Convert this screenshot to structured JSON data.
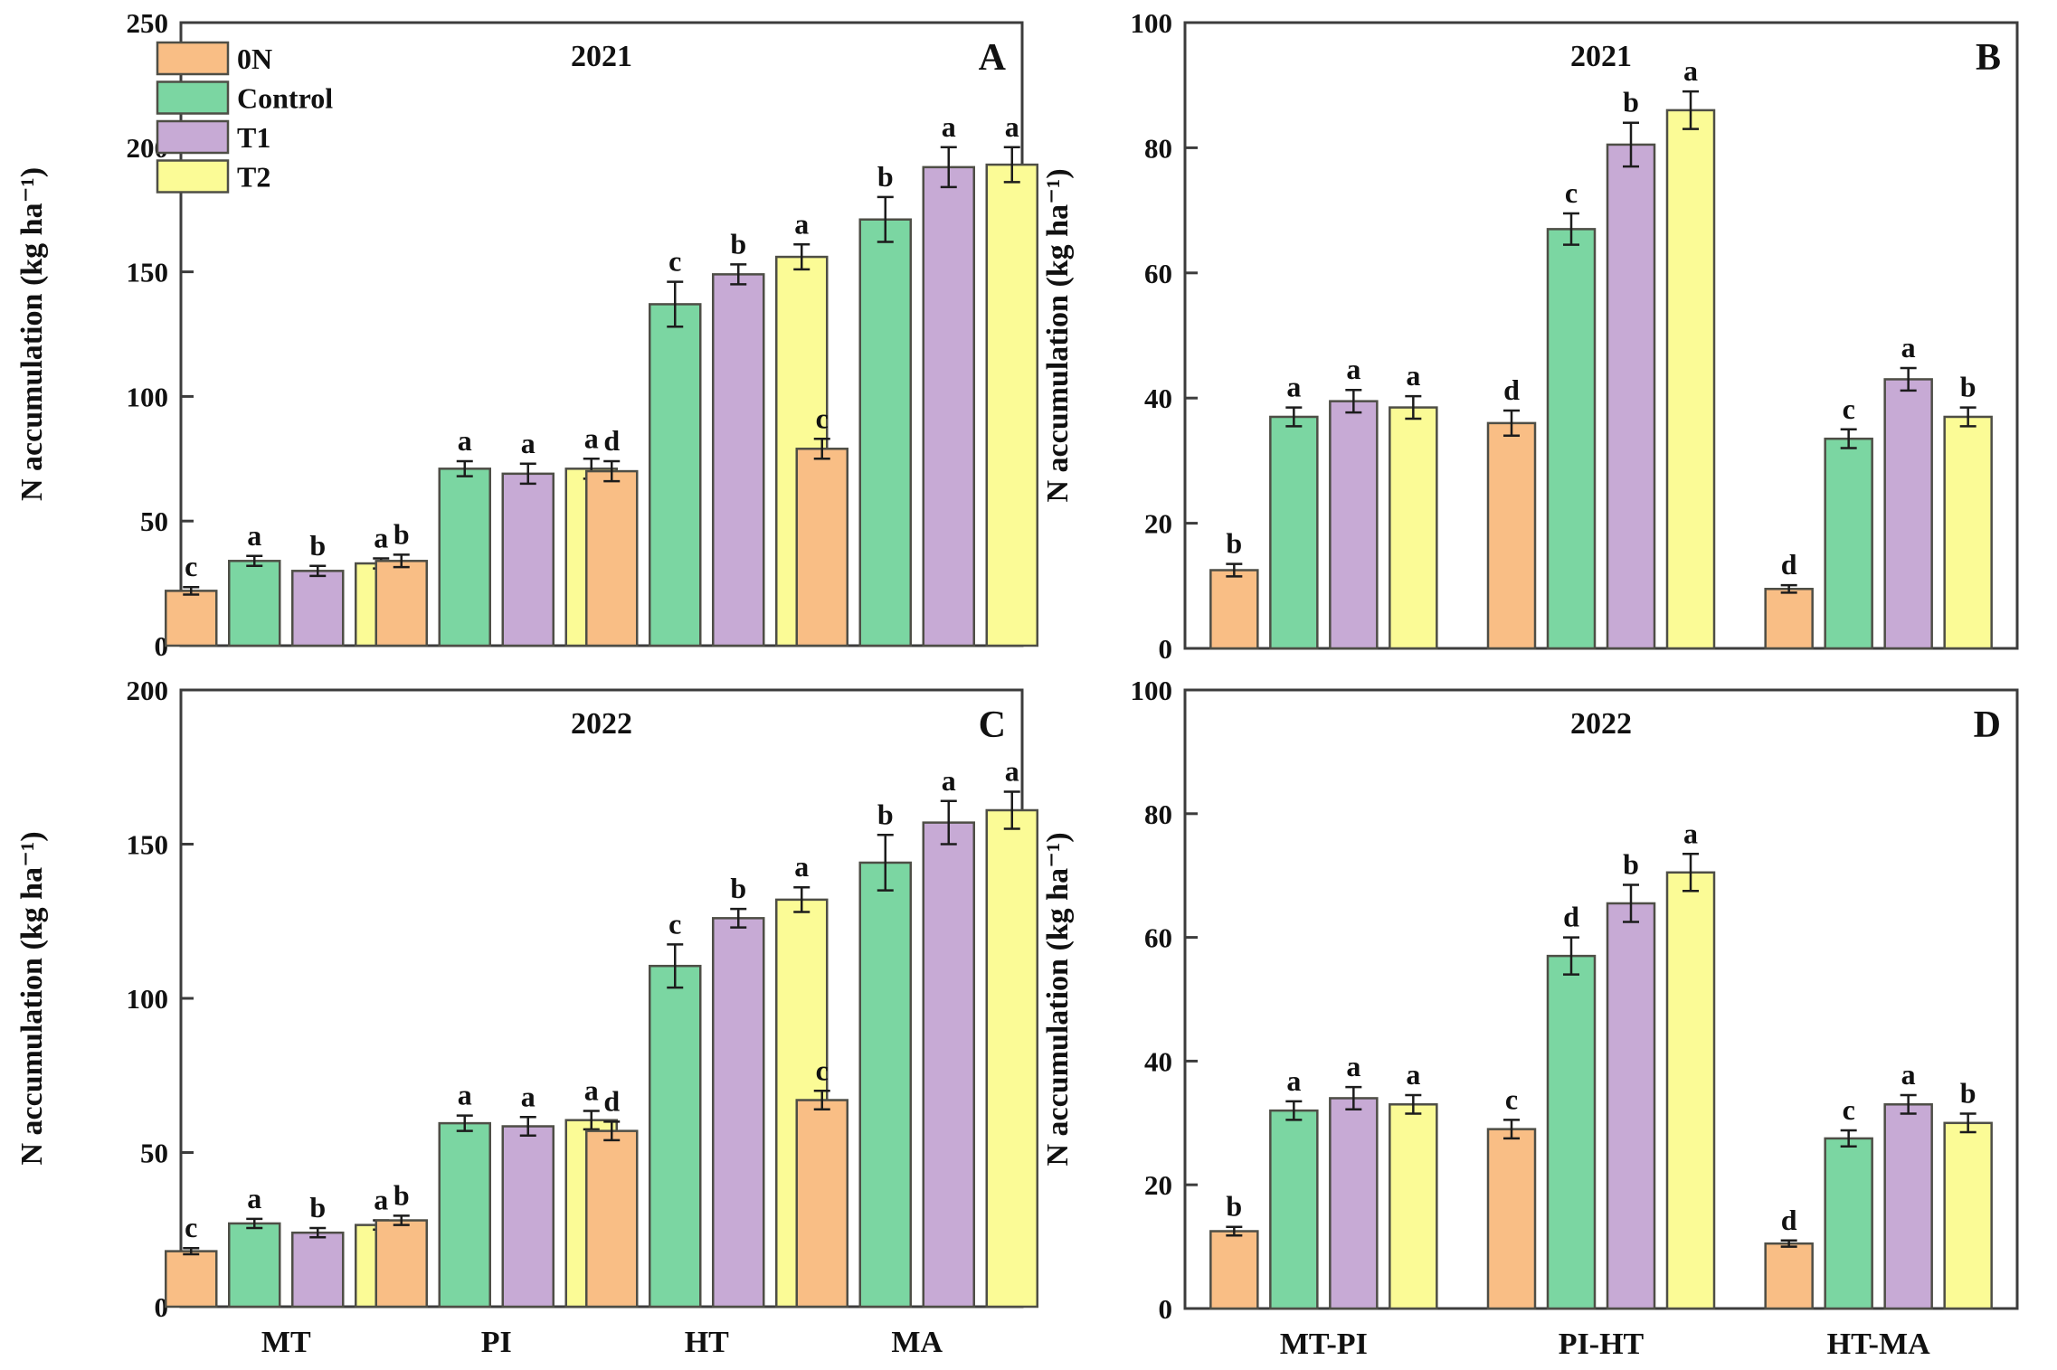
{
  "figure": {
    "background": "#ffffff",
    "axis_color": "#3c3c3c",
    "bar_border_color": "#4e4e46",
    "error_bar_color": "#1c1c1c",
    "ylabel": "N accumulation (kg ha⁻¹)"
  },
  "legend": {
    "position": "top-left-inside-panel-A",
    "items": [
      {
        "label": "0N",
        "color": "#F9BE85"
      },
      {
        "label": "Control",
        "color": "#7BD6A2"
      },
      {
        "label": "T1",
        "color": "#C7AAD5"
      },
      {
        "label": "T2",
        "color": "#FBFB96"
      }
    ]
  },
  "chart_data": [
    {
      "type": "bar",
      "panel_label": "A",
      "title": "2021",
      "ylabel": "N accumulation (kg ha⁻¹)",
      "ylim": [
        0,
        250
      ],
      "ytick_step": 50,
      "yticks": [
        0,
        50,
        100,
        150,
        200,
        250
      ],
      "grid": false,
      "categories": [
        "MT",
        "PI",
        "HT",
        "MA"
      ],
      "show_x_tick_labels": false,
      "show_legend": true,
      "series": [
        {
          "name": "0N",
          "values": [
            22,
            34,
            70,
            79
          ],
          "errors": [
            1.5,
            2.5,
            4,
            4
          ],
          "letters": [
            "c",
            "b",
            "d",
            "c"
          ]
        },
        {
          "name": "Control",
          "values": [
            34,
            71,
            137,
            171
          ],
          "errors": [
            2,
            3,
            9,
            9
          ],
          "letters": [
            "a",
            "a",
            "c",
            "b"
          ]
        },
        {
          "name": "T1",
          "values": [
            30,
            69,
            149,
            192
          ],
          "errors": [
            2,
            4,
            4,
            8
          ],
          "letters": [
            "b",
            "a",
            "b",
            "a"
          ]
        },
        {
          "name": "T2",
          "values": [
            33,
            71,
            156,
            193
          ],
          "errors": [
            2,
            4,
            5,
            7
          ],
          "letters": [
            "a",
            "a",
            "a",
            "a"
          ]
        }
      ]
    },
    {
      "type": "bar",
      "panel_label": "B",
      "title": "2021",
      "ylabel": "N accumulation (kg ha⁻¹)",
      "ylim": [
        0,
        100
      ],
      "ytick_step": 20,
      "yticks": [
        0,
        20,
        40,
        60,
        80,
        100
      ],
      "grid": false,
      "categories": [
        "MT-PI",
        "PI-HT",
        "HT-MA"
      ],
      "show_x_tick_labels": false,
      "show_legend": false,
      "series": [
        {
          "name": "0N",
          "values": [
            12.5,
            36,
            9.5
          ],
          "errors": [
            1,
            2,
            0.6
          ],
          "letters": [
            "b",
            "d",
            "d"
          ]
        },
        {
          "name": "Control",
          "values": [
            37,
            67,
            33.5
          ],
          "errors": [
            1.5,
            2.5,
            1.5
          ],
          "letters": [
            "a",
            "c",
            "c"
          ]
        },
        {
          "name": "T1",
          "values": [
            39.5,
            80.5,
            43
          ],
          "errors": [
            1.8,
            3.5,
            1.8
          ],
          "letters": [
            "a",
            "b",
            "a"
          ]
        },
        {
          "name": "T2",
          "values": [
            38.5,
            86,
            37
          ],
          "errors": [
            1.8,
            3,
            1.5
          ],
          "letters": [
            "a",
            "a",
            "b"
          ]
        }
      ]
    },
    {
      "type": "bar",
      "panel_label": "C",
      "title": "2022",
      "ylabel": "N accumulation (kg ha⁻¹)",
      "ylim": [
        0,
        200
      ],
      "ytick_step": 50,
      "yticks": [
        0,
        50,
        100,
        150,
        200
      ],
      "grid": false,
      "categories": [
        "MT",
        "PI",
        "HT",
        "MA"
      ],
      "show_x_tick_labels": true,
      "show_legend": false,
      "series": [
        {
          "name": "0N",
          "values": [
            18,
            28,
            57,
            67
          ],
          "errors": [
            1,
            1.5,
            3,
            3
          ],
          "letters": [
            "c",
            "b",
            "d",
            "c"
          ]
        },
        {
          "name": "Control",
          "values": [
            27,
            59.5,
            110.5,
            144
          ],
          "errors": [
            1.5,
            2.5,
            7,
            9
          ],
          "letters": [
            "a",
            "a",
            "c",
            "b"
          ]
        },
        {
          "name": "T1",
          "values": [
            24,
            58.5,
            126,
            157
          ],
          "errors": [
            1.5,
            3,
            3,
            7
          ],
          "letters": [
            "b",
            "a",
            "b",
            "a"
          ]
        },
        {
          "name": "T2",
          "values": [
            26.5,
            60.5,
            132,
            161
          ],
          "errors": [
            1.5,
            3,
            4,
            6
          ],
          "letters": [
            "a",
            "a",
            "a",
            "a"
          ]
        }
      ]
    },
    {
      "type": "bar",
      "panel_label": "D",
      "title": "2022",
      "ylabel": "N accumulation (kg ha⁻¹)",
      "ylim": [
        0,
        100
      ],
      "ytick_step": 20,
      "yticks": [
        0,
        20,
        40,
        60,
        80,
        100
      ],
      "grid": false,
      "categories": [
        "MT-PI",
        "PI-HT",
        "HT-MA"
      ],
      "show_x_tick_labels": true,
      "show_legend": false,
      "series": [
        {
          "name": "0N",
          "values": [
            12.5,
            29,
            10.5
          ],
          "errors": [
            0.7,
            1.5,
            0.5
          ],
          "letters": [
            "b",
            "c",
            "d"
          ]
        },
        {
          "name": "Control",
          "values": [
            32,
            57,
            27.5
          ],
          "errors": [
            1.5,
            3,
            1.3
          ],
          "letters": [
            "a",
            "d",
            "c"
          ]
        },
        {
          "name": "T1",
          "values": [
            34,
            65.5,
            33
          ],
          "errors": [
            1.8,
            3,
            1.5
          ],
          "letters": [
            "a",
            "b",
            "a"
          ]
        },
        {
          "name": "T2",
          "values": [
            33,
            70.5,
            30
          ],
          "errors": [
            1.5,
            3,
            1.5
          ],
          "letters": [
            "a",
            "a",
            "b"
          ]
        }
      ]
    }
  ]
}
